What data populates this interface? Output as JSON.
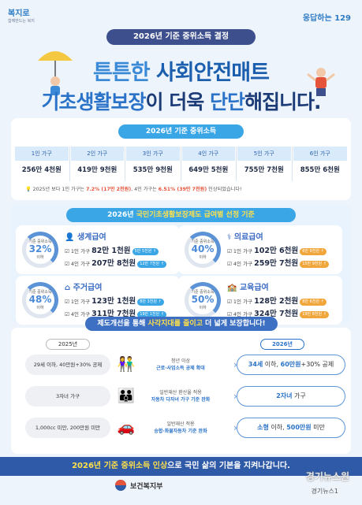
{
  "header": {
    "logo_left": "복지로",
    "logo_left_sub": "함께만드는 복지",
    "logo_right": "응답하는 129",
    "title_pill": "2026년 기준 중위소득 결정"
  },
  "headline": {
    "line1_a": "튼튼한 ",
    "line1_b": "사회안전매트",
    "line2_a": "기초생활보장",
    "line2_b": "이 더욱 ",
    "line2_c": "단단",
    "line2_d": "해집니다."
  },
  "income": {
    "title": "2026년 기준 중위소득",
    "cols": [
      {
        "h": "1인 가구",
        "v": "256만 4천원"
      },
      {
        "h": "2인 가구",
        "v": "419만 9천원"
      },
      {
        "h": "3인 가구",
        "v": "535만 9천원"
      },
      {
        "h": "4인 가구",
        "v": "649만 5천원"
      },
      {
        "h": "5인 가구",
        "v": "755만 7천원"
      },
      {
        "h": "6인 가구",
        "v": "855만 6천원"
      }
    ],
    "note_a": "2025년 보다 1인 가구는 ",
    "note_b": "7.2% (17만 2천원)",
    "note_c": ", 4인 가구는 ",
    "note_d": "6.51% (39만 7천원)",
    "note_e": " 인상되었습니다!"
  },
  "benefits": {
    "title_a": "2026년 ",
    "title_b": "국민기초생활보장제도 급여별 선정 기준",
    "items": [
      {
        "gauge_label": "기준 중위소득",
        "pct": "32%",
        "below": "이하",
        "name": "생계급여",
        "l1": "1인 가구",
        "v1": "82만 1천원",
        "t1": "5만 5천원 ↑",
        "l2": "4인 가구",
        "v2": "207만 8천원",
        "t2": "12만 7천원 ↑"
      },
      {
        "gauge_label": "기준 중위소득",
        "pct": "40%",
        "below": "이하",
        "name": "의료급여",
        "l1": "1인 가구",
        "v1": "102만 6천원",
        "t1": "6만 9천원 ↑",
        "l2": "4인 가구",
        "v2": "259만 7천원",
        "t2": "15만 9천원 ↑"
      },
      {
        "gauge_label": "기준 중위소득",
        "pct": "48%",
        "below": "이하",
        "name": "주거급여",
        "l1": "1인 가구",
        "v1": "123만 1천원",
        "t1": "8만 3천원 ↑",
        "l2": "4인 가구",
        "v2": "311만 7천원",
        "t2": "19만 1천원 ↑"
      },
      {
        "gauge_label": "기준 중위소득",
        "pct": "50%",
        "below": "이하",
        "name": "교육급여",
        "l1": "1인 가구",
        "v1": "128만 2천원",
        "t1": "8만 6천원 ↑",
        "l2": "4인 가구",
        "v2": "324만 7천원",
        "t2": "19만 8천원 ↑"
      }
    ]
  },
  "improve": {
    "title_a": "제도개선을 통해 ",
    "title_b": "사각지대를 줄이고",
    "title_c": " 더 넓게 보장합니다!",
    "year_old": "2025년",
    "year_new": "2026년",
    "rows": [
      {
        "old": "29세 이하, 40만원+30% 공제",
        "mid_a": "청년 이상",
        "mid_b": "근로·사업소득 공제 확대",
        "new_a": "34세",
        "new_b": " 이하, ",
        "new_c": "60만원",
        "new_d": "+30% 공제"
      },
      {
        "old": "3자녀 가구",
        "mid_a": "일반재산 환산율 적용",
        "mid_b": "자동차 다자녀 가구 기준 완화",
        "new_a": "2자녀",
        "new_b": " 가구",
        "new_c": "",
        "new_d": ""
      },
      {
        "old": "1,000cc 미만, 200만원 미만",
        "mid_a": "일반재산 적용",
        "mid_b": "승합·화물자동차 기준 완화",
        "new_a": "소형",
        "new_b": " 이하, ",
        "new_c": "500만원",
        "new_d": " 미만"
      }
    ]
  },
  "footer": {
    "banner_a": "2026년 기준 중위소득 인상",
    "banner_b": "으로 국민 삶의 기본을 지켜나갑니다.",
    "ministry": "보건복지부",
    "wm1": "경기뉴스원",
    "wm2": "경기뉴스1"
  },
  "colors": {
    "primary": "#2f5aa8",
    "accent": "#3ba6e6",
    "highlight": "#ffe14a"
  }
}
